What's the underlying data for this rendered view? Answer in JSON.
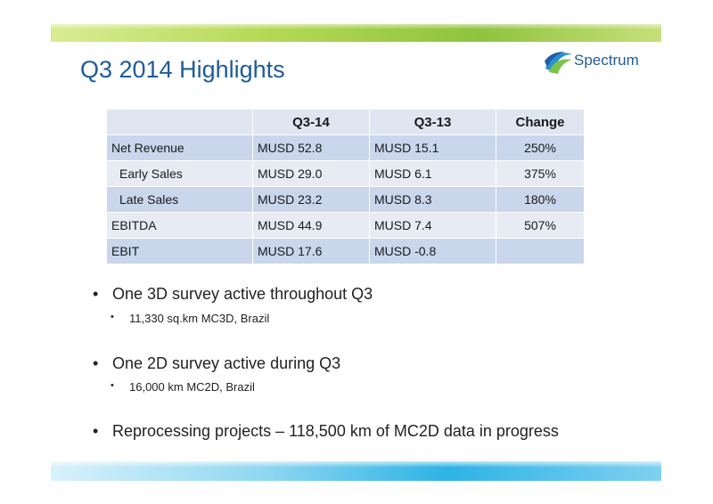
{
  "slide": {
    "title": "Q3 2014 Highlights",
    "logo_text": "Spectrum"
  },
  "table": {
    "headers": [
      "",
      "Q3-14",
      "Q3-13",
      "Change"
    ],
    "rows": [
      {
        "label": "Net Revenue",
        "q314": "MUSD 52.8",
        "q313": "MUSD 15.1",
        "change": "250%"
      },
      {
        "label": "Early Sales",
        "q314": "MUSD 29.0",
        "q313": "MUSD 6.1",
        "change": "375%"
      },
      {
        "label": "Late Sales",
        "q314": "MUSD 23.2",
        "q313": "MUSD 8.3",
        "change": "180%"
      },
      {
        "label": "EBITDA",
        "q314": "MUSD 44.9",
        "q313": "MUSD 7.4",
        "change": "507%"
      },
      {
        "label": "EBIT",
        "q314": "MUSD 17.6",
        "q313": "MUSD -0.8",
        "change": ""
      }
    ]
  },
  "bullets": [
    {
      "text": "One 3D survey active throughout Q3",
      "sub": "11,330 sq.km MC3D, Brazil"
    },
    {
      "text": "One 2D survey active during Q3",
      "sub": "16,000 km MC2D, Brazil"
    },
    {
      "text": "Reprocessing projects – 118,500 km of MC2D data in progress"
    }
  ],
  "colors": {
    "title": "#1f5b9b",
    "row_dark": "#c9d6ec",
    "row_light": "#e6ebf4",
    "top_band": "#8fc33e",
    "bottom_band": "#2db3e6"
  }
}
